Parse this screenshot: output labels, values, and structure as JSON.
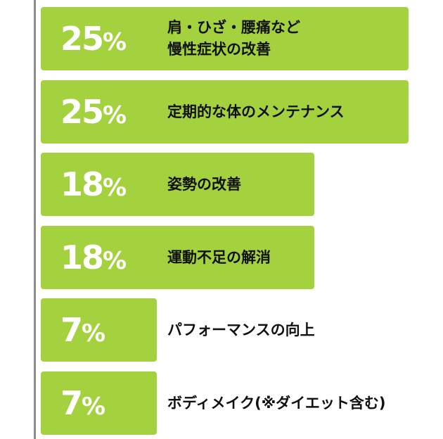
{
  "accent_color": "#a4d13e",
  "chart_data": {
    "type": "bar",
    "orientation": "horizontal",
    "unit": "%",
    "categories": [
      "肩・ひざ・腰痛など\n慢性症状の改善",
      "定期的な体のメンテナンス",
      "姿勢の改善",
      "運動不足の解消",
      "パフォーマンスの向上",
      "ボディメイク(※ダイエット含む)"
    ],
    "values": [
      25,
      25,
      18,
      18,
      7,
      7
    ],
    "xlim": [
      0,
      25
    ],
    "grid": false,
    "legend": "none",
    "title": "",
    "xlabel": "",
    "ylabel": ""
  }
}
